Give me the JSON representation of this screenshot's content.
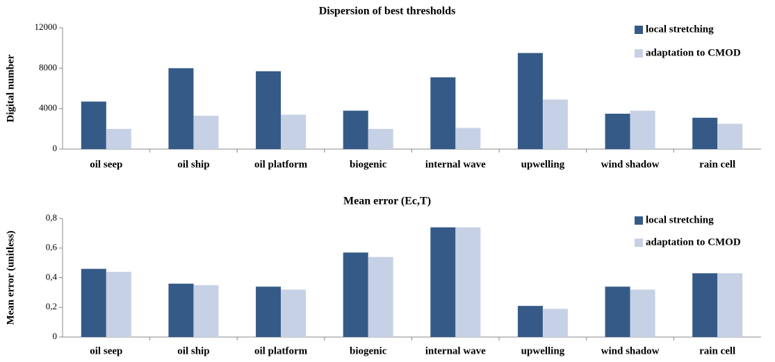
{
  "chart_data": [
    {
      "type": "bar",
      "title": "Dispersion of best thresholds",
      "ylabel": "Digital number",
      "categories": [
        "oil seep",
        "oil ship",
        "oil platform",
        "biogenic",
        "internal wave",
        "upwelling",
        "wind shadow",
        "rain cell"
      ],
      "series": [
        {
          "name": "local stretching",
          "color": "#355a87",
          "values": [
            4700,
            8000,
            7700,
            3800,
            7100,
            9500,
            3500,
            3100
          ]
        },
        {
          "name": "adaptation to CMOD",
          "color": "#c6d1e5",
          "values": [
            2000,
            3300,
            3400,
            2000,
            2100,
            4900,
            3800,
            2500
          ]
        }
      ],
      "ylim": [
        0,
        12000
      ],
      "yticks": [
        0,
        4000,
        8000,
        12000
      ],
      "legend": "upper right"
    },
    {
      "type": "bar",
      "title": "Mean error (Ec,T)",
      "ylabel": "Mean error (unitless)",
      "categories": [
        "oil seep",
        "oil ship",
        "oil platform",
        "biogenic",
        "internal wave",
        "upwelling",
        "wind shadow",
        "rain cell"
      ],
      "series": [
        {
          "name": "local stretching",
          "color": "#355a87",
          "values": [
            0.46,
            0.36,
            0.34,
            0.57,
            0.74,
            0.21,
            0.34,
            0.43
          ]
        },
        {
          "name": "adaptation to CMOD",
          "color": "#c6d1e5",
          "values": [
            0.44,
            0.35,
            0.32,
            0.54,
            0.74,
            0.19,
            0.32,
            0.43
          ]
        }
      ],
      "ylim": [
        0,
        0.8
      ],
      "yticks": [
        0,
        {
          "value": 0.2,
          "label": "0,2"
        },
        {
          "value": 0.4,
          "label": "0,4"
        },
        {
          "value": 0.6,
          "label": "0,6"
        },
        {
          "value": 0.8,
          "label": "0,8"
        }
      ],
      "legend": "upper right"
    }
  ]
}
